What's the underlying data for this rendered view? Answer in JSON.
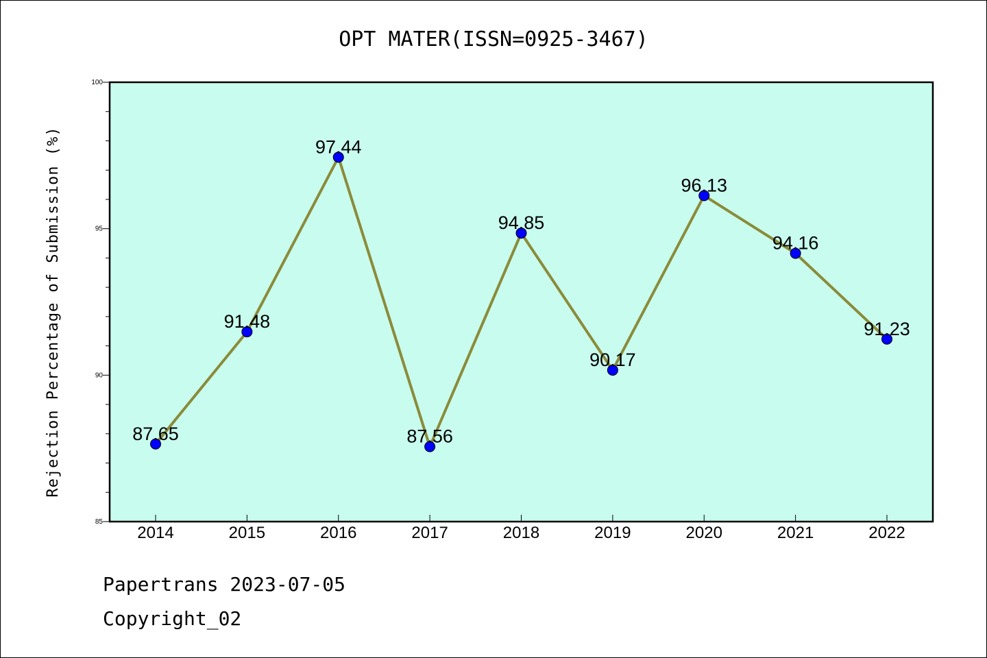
{
  "footer": {
    "line1": "Papertrans 2023-07-05",
    "line2": "Copyright_02"
  },
  "chart_data": {
    "type": "line",
    "title": "OPT MATER(ISSN=0925-3467)",
    "xlabel": "",
    "ylabel": "Rejection Percentage of Submission (%)",
    "categories": [
      "2014",
      "2015",
      "2016",
      "2017",
      "2018",
      "2019",
      "2020",
      "2021",
      "2022"
    ],
    "values": [
      87.65,
      91.48,
      97.44,
      87.56,
      94.85,
      90.17,
      96.13,
      94.16,
      91.23
    ],
    "data_labels": [
      "87.65",
      "91.48",
      "97.44",
      "87.56",
      "94.85",
      "90.17",
      "96.13",
      "94.16",
      "91.23"
    ],
    "ylim": [
      85,
      100
    ],
    "yticks": [
      85,
      90,
      95,
      100
    ],
    "ytick_labels": [
      "85",
      "90",
      "95",
      "100"
    ],
    "grid": false,
    "legend": "none",
    "colors": {
      "plot_background": "#c8fcee",
      "line": "#8b8b3a",
      "marker": "#0000ff"
    }
  }
}
